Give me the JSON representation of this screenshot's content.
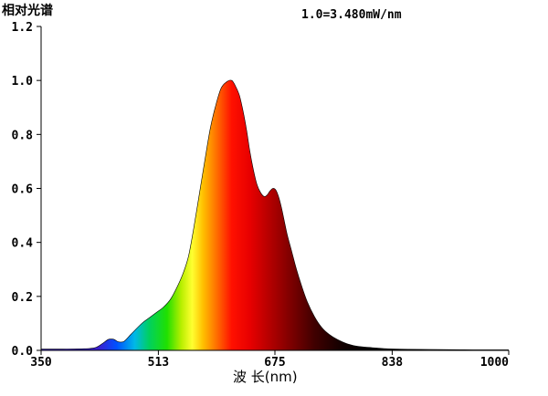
{
  "chart_data": {
    "type": "area",
    "title": "1.0=3.480mW/nm",
    "ylabel": "相对光谱",
    "xlabel": "波 长(nm)",
    "xlim": [
      350,
      1000
    ],
    "ylim": [
      0,
      1.2
    ],
    "x_ticks": [
      "350",
      "513",
      "675",
      "838",
      "1000"
    ],
    "y_ticks": [
      "0.0",
      "0.2",
      "0.4",
      "0.6",
      "0.8",
      "1.0",
      "1.2"
    ],
    "grid": false,
    "series": [
      {
        "x": [
          350,
          380,
          410,
          425,
          435,
          443,
          448,
          452,
          457,
          465,
          475,
          490,
          500,
          510,
          520,
          530,
          540,
          548,
          555,
          562,
          570,
          578,
          585,
          592,
          600,
          608,
          615,
          620,
          625,
          628,
          632,
          636,
          640,
          645,
          650,
          655,
          660,
          664,
          668,
          672,
          676,
          680,
          684,
          688,
          692,
          698,
          705,
          712,
          720,
          730,
          740,
          750,
          762,
          775,
          790,
          810,
          830,
          860,
          900,
          950,
          1000
        ],
        "y": [
          0.005,
          0.005,
          0.006,
          0.01,
          0.025,
          0.04,
          0.042,
          0.04,
          0.032,
          0.033,
          0.06,
          0.1,
          0.12,
          0.14,
          0.16,
          0.19,
          0.24,
          0.29,
          0.35,
          0.45,
          0.58,
          0.71,
          0.82,
          0.9,
          0.97,
          0.995,
          1.0,
          0.98,
          0.95,
          0.92,
          0.87,
          0.81,
          0.74,
          0.67,
          0.615,
          0.585,
          0.57,
          0.575,
          0.59,
          0.6,
          0.595,
          0.57,
          0.53,
          0.48,
          0.43,
          0.37,
          0.3,
          0.24,
          0.18,
          0.125,
          0.085,
          0.06,
          0.04,
          0.025,
          0.015,
          0.01,
          0.006,
          0.004,
          0.003,
          0.002,
          0.002
        ]
      }
    ],
    "colors": {
      "axis": "#000000",
      "spectrum_stops": [
        {
          "wl": 430,
          "color": "#3a1fd0"
        },
        {
          "wl": 455,
          "color": "#0050ff"
        },
        {
          "wl": 480,
          "color": "#00b8e8"
        },
        {
          "wl": 500,
          "color": "#00d060"
        },
        {
          "wl": 525,
          "color": "#20e000"
        },
        {
          "wl": 545,
          "color": "#b8ef00"
        },
        {
          "wl": 560,
          "color": "#ffff30"
        },
        {
          "wl": 575,
          "color": "#ffc000"
        },
        {
          "wl": 595,
          "color": "#ff6a00"
        },
        {
          "wl": 615,
          "color": "#ff1000"
        },
        {
          "wl": 640,
          "color": "#e80000"
        },
        {
          "wl": 670,
          "color": "#b00000"
        },
        {
          "wl": 700,
          "color": "#780000"
        },
        {
          "wl": 730,
          "color": "#400000"
        },
        {
          "wl": 770,
          "color": "#100000"
        },
        {
          "wl": 810,
          "color": "#000000"
        }
      ]
    }
  }
}
